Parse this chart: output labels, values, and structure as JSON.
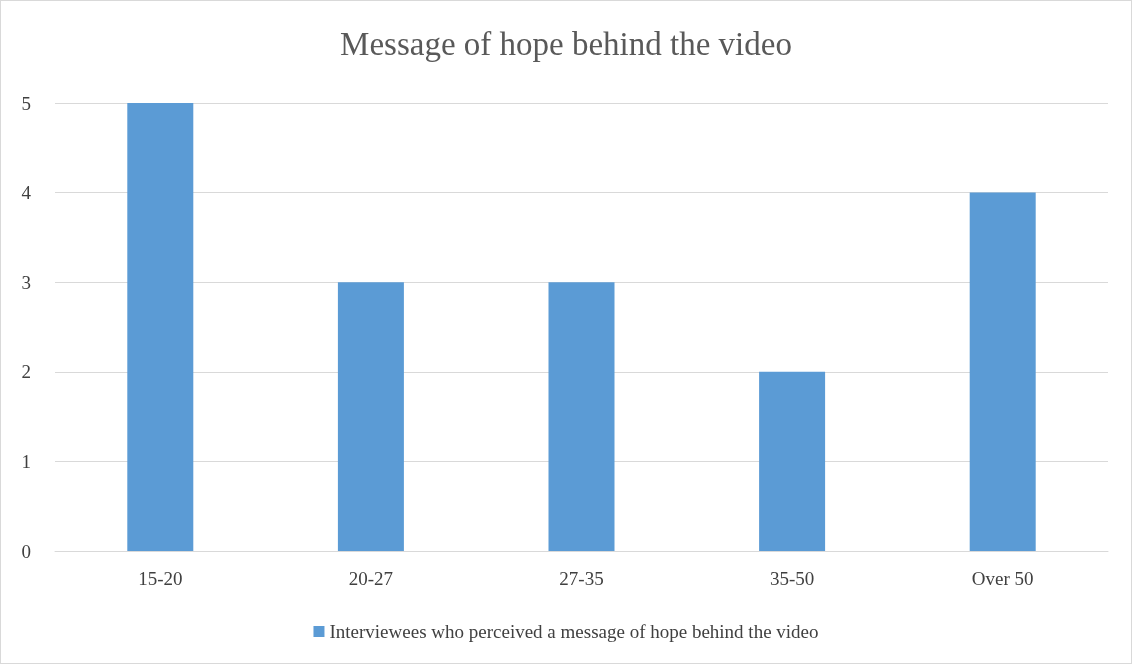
{
  "chart_data": {
    "type": "bar",
    "title": "Message of hope behind the video",
    "categories": [
      "15-20",
      "20-27",
      "27-35",
      "35-50",
      "Over 50"
    ],
    "series": [
      {
        "name": "Interviewees who perceived a message of hope behind the video",
        "color": "#5b9bd5",
        "values": [
          5,
          3,
          3,
          2,
          4
        ]
      }
    ],
    "ylim": [
      0,
      5
    ],
    "yticks": [
      0,
      1,
      2,
      3,
      4,
      5
    ],
    "grid": "y",
    "legend": "bottom"
  }
}
